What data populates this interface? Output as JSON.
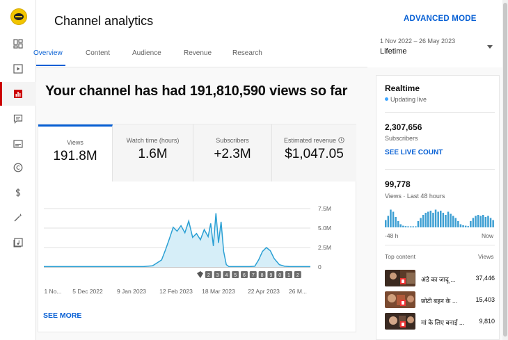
{
  "header": {
    "title": "Channel analytics",
    "advanced_mode": "ADVANCED MODE",
    "date_range": "1 Nov 2022 – 26 May 2023",
    "date_label": "Lifetime"
  },
  "tabs": [
    "Overview",
    "Content",
    "Audience",
    "Revenue",
    "Research"
  ],
  "headline": "Your channel has had 191,810,590 views so far",
  "metrics": [
    {
      "label": "Views",
      "value": "191.8M"
    },
    {
      "label": "Watch time (hours)",
      "value": "1.6M"
    },
    {
      "label": "Subscribers",
      "value": "+2.3M"
    },
    {
      "label": "Estimated revenue",
      "value": "$1,047.05"
    }
  ],
  "chart_data": {
    "type": "area",
    "y_ticks": [
      "7.5M",
      "5.0M",
      "2.5M",
      "0"
    ],
    "x_ticks": [
      "1 No...",
      "5 Dec 2022",
      "9 Jan 2023",
      "12 Feb 2023",
      "18 Mar 2023",
      "22 Apr 2023",
      "26 M..."
    ],
    "ylim": [
      0,
      7500000
    ],
    "x": [
      "2022-11-01",
      "2022-11-08",
      "2022-11-15",
      "2022-11-22",
      "2022-11-29",
      "2022-12-06",
      "2022-12-13",
      "2022-12-20",
      "2022-12-27",
      "2023-01-03",
      "2023-01-10",
      "2023-01-17",
      "2023-01-24",
      "2023-01-31",
      "2023-02-03",
      "2023-02-06",
      "2023-02-09",
      "2023-02-12",
      "2023-02-15",
      "2023-02-18",
      "2023-02-21",
      "2023-02-24",
      "2023-02-27",
      "2023-03-02",
      "2023-03-05",
      "2023-03-08",
      "2023-03-10",
      "2023-03-12",
      "2023-03-14",
      "2023-03-16",
      "2023-03-18",
      "2023-03-20",
      "2023-03-22",
      "2023-03-24",
      "2023-03-28",
      "2023-04-01",
      "2023-04-05",
      "2023-04-09",
      "2023-04-13",
      "2023-04-16",
      "2023-04-19",
      "2023-04-22",
      "2023-04-25",
      "2023-04-28",
      "2023-05-02",
      "2023-05-06",
      "2023-05-10",
      "2023-05-14",
      "2023-05-18",
      "2023-05-22",
      "2023-05-26"
    ],
    "values": [
      0.05,
      0.05,
      0.05,
      0.05,
      0.05,
      0.05,
      0.05,
      0.05,
      0.05,
      0.05,
      0.05,
      0.05,
      0.15,
      0.9,
      2.2,
      3.6,
      5.1,
      4.6,
      5.3,
      4.4,
      5.9,
      3.8,
      4.3,
      3.5,
      4.8,
      3.9,
      5.6,
      2.7,
      6.9,
      3.1,
      5.8,
      2.0,
      0.3,
      0.05,
      0.05,
      0.05,
      0.05,
      0.05,
      0.1,
      0.9,
      2.0,
      2.5,
      2.1,
      1.1,
      0.3,
      0.1,
      0.05,
      0.05,
      0.05,
      0.05,
      0.05
    ],
    "value_unit": "millions",
    "markers": [
      "1",
      "2",
      "3",
      "4",
      "5",
      "6",
      "7",
      "8",
      "9",
      "0",
      "1",
      "2"
    ]
  },
  "see_more": "SEE MORE",
  "realtime": {
    "title": "Realtime",
    "live_label": "Updating live",
    "subscribers": "2,307,656",
    "subscribers_label": "Subscribers",
    "live_count": "SEE LIVE COUNT",
    "views": "99,778",
    "views_label": "Views · Last 48 hours",
    "axis_left": "-48 h",
    "axis_right": "Now",
    "bars": [
      0.35,
      0.55,
      0.85,
      0.75,
      0.5,
      0.3,
      0.15,
      0.08,
      0.06,
      0.05,
      0.05,
      0.05,
      0.05,
      0.3,
      0.45,
      0.6,
      0.7,
      0.75,
      0.8,
      0.7,
      0.85,
      0.75,
      0.8,
      0.7,
      0.6,
      0.75,
      0.65,
      0.55,
      0.45,
      0.3,
      0.15,
      0.1,
      0.08,
      0.06,
      0.3,
      0.45,
      0.55,
      0.6,
      0.55,
      0.6,
      0.5,
      0.55,
      0.45,
      0.35
    ]
  },
  "top_content": {
    "header_left": "Top content",
    "header_right": "Views",
    "items": [
      {
        "title": "अंडे का जादू ...",
        "views": "37,446"
      },
      {
        "title": "छोटी बहन के ...",
        "views": "15,403"
      },
      {
        "title": "मां के लिए बनाई ...",
        "views": "9,810"
      }
    ]
  }
}
